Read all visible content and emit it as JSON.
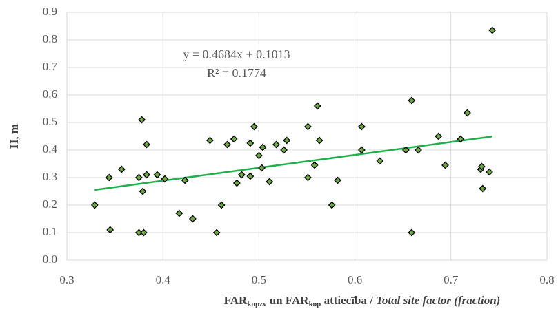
{
  "chart_data": {
    "type": "scatter",
    "xlabel_parts": [
      "FAR",
      "kopzv",
      " un FAR",
      "kop",
      " attiecība / ",
      "Total site factor (fraction)"
    ],
    "ylabel": "H, m",
    "color": "#70a846",
    "x": [
      0.329,
      0.344,
      0.345,
      0.357,
      0.375,
      0.375,
      0.378,
      0.379,
      0.38,
      0.383,
      0.383,
      0.394,
      0.402,
      0.417,
      0.423,
      0.431,
      0.449,
      0.456,
      0.461,
      0.467,
      0.474,
      0.477,
      0.482,
      0.491,
      0.491,
      0.495,
      0.5,
      0.503,
      0.504,
      0.511,
      0.518,
      0.526,
      0.529,
      0.551,
      0.551,
      0.558,
      0.561,
      0.563,
      0.576,
      0.582,
      0.607,
      0.607,
      0.626,
      0.653,
      0.659,
      0.659,
      0.666,
      0.687,
      0.694,
      0.71,
      0.717,
      0.731,
      0.732,
      0.733,
      0.74,
      0.743
    ],
    "values": [
      0.2,
      0.3,
      0.11,
      0.33,
      0.3,
      0.1,
      0.51,
      0.25,
      0.1,
      0.42,
      0.31,
      0.31,
      0.295,
      0.17,
      0.29,
      0.15,
      0.435,
      0.1,
      0.2,
      0.42,
      0.44,
      0.28,
      0.31,
      0.425,
      0.305,
      0.485,
      0.38,
      0.335,
      0.41,
      0.285,
      0.42,
      0.4,
      0.435,
      0.485,
      0.3,
      0.345,
      0.56,
      0.435,
      0.2,
      0.29,
      0.485,
      0.4,
      0.36,
      0.4,
      0.58,
      0.1,
      0.4,
      0.45,
      0.345,
      0.44,
      0.535,
      0.33,
      0.34,
      0.26,
      0.32,
      0.835
    ],
    "xlim": [
      0.3,
      0.8
    ],
    "xticks": [
      0.3,
      0.4,
      0.5,
      0.6,
      0.7,
      0.8
    ],
    "ylim": [
      0,
      0.9
    ],
    "yticks": [
      {
        "value": 0,
        "label": "0.0"
      },
      0.1,
      0.2,
      0.3,
      0.4,
      0.5,
      0.6,
      0.7,
      0.8,
      0.9
    ],
    "grid": true,
    "trendline": {
      "equation": "y = 0.4684x + 0.1013",
      "r2": "R² = 0.1774",
      "slope": 0.4684,
      "intercept": 0.1013,
      "color": "#1fb04c"
    }
  }
}
